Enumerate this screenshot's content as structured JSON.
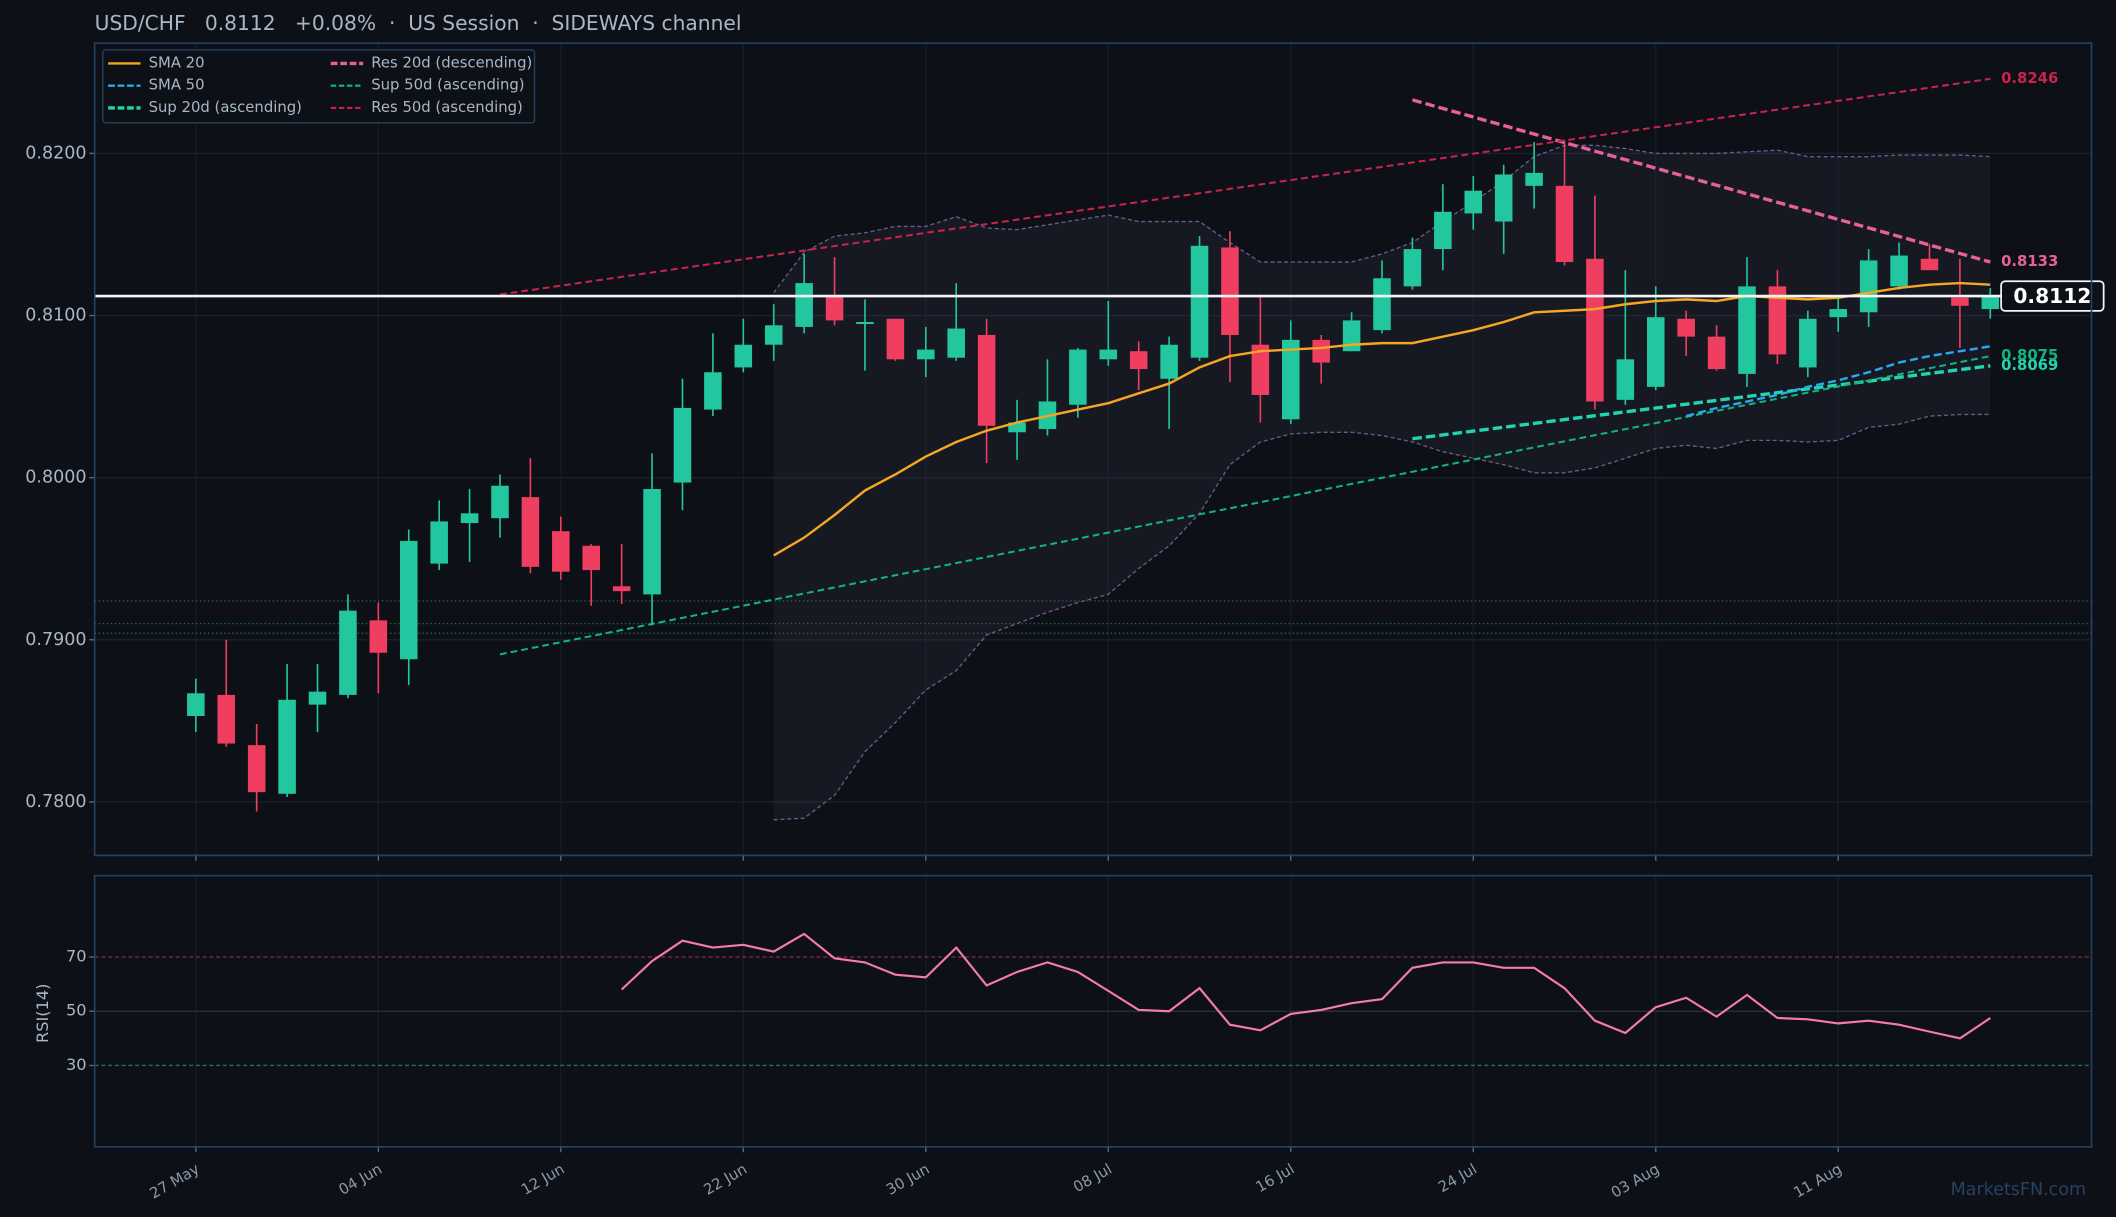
{
  "chart_data": [
    {
      "type": "candlestick",
      "title": "USD/CHF   0.8112   +0.08%  ·  US Session  ·  SIDEWAYS channel",
      "watermark": "MarketsFN.com",
      "categories": [
        "27 May",
        null,
        null,
        null,
        null,
        null,
        "04 Jun",
        null,
        null,
        null,
        null,
        null,
        "12 Jun",
        null,
        null,
        null,
        null,
        null,
        "22 Jun",
        null,
        null,
        null,
        null,
        null,
        "30 Jun",
        null,
        null,
        null,
        null,
        null,
        "08 Jul",
        null,
        null,
        null,
        null,
        null,
        "16 Jul",
        null,
        null,
        null,
        null,
        null,
        "24 Jul",
        null,
        null,
        null,
        null,
        null,
        "03 Aug",
        null,
        null,
        null,
        null,
        null,
        "11 Aug",
        null,
        null,
        null,
        null,
        null
      ],
      "open": [
        0.7853,
        0.7866,
        0.7835,
        0.7805,
        0.786,
        0.7866,
        0.7912,
        0.7888,
        0.7947,
        0.7972,
        0.7975,
        0.7988,
        0.7967,
        0.7958,
        0.7933,
        0.7928,
        0.7997,
        0.8042,
        0.8068,
        0.8082,
        0.8093,
        0.8112,
        0.8095,
        0.8098,
        0.8073,
        0.8074,
        0.8088,
        0.8028,
        0.803,
        0.8045,
        0.8073,
        0.8078,
        0.8061,
        0.8074,
        0.8142,
        0.8082,
        0.8036,
        0.8085,
        0.8078,
        0.8091,
        0.8118,
        0.8141,
        0.8163,
        0.8158,
        0.818,
        0.818,
        0.8135,
        0.8048,
        0.8056,
        0.8098,
        0.8087,
        0.8064,
        0.8118,
        0.8068,
        0.8099,
        0.8102,
        0.8118,
        0.8135,
        0.8111,
        0.8104
      ],
      "high": [
        0.7876,
        0.79,
        0.7848,
        0.7885,
        0.7885,
        0.7928,
        0.7923,
        0.7968,
        0.7986,
        0.7993,
        0.8002,
        0.8012,
        0.7976,
        0.7959,
        0.7959,
        0.8015,
        0.8061,
        0.8089,
        0.8098,
        0.8107,
        0.8138,
        0.8136,
        0.811,
        0.8098,
        0.8093,
        0.812,
        0.8098,
        0.8048,
        0.8073,
        0.808,
        0.8109,
        0.8084,
        0.8087,
        0.8149,
        0.8152,
        0.8113,
        0.8097,
        0.8088,
        0.8102,
        0.8134,
        0.8148,
        0.8181,
        0.8186,
        0.8193,
        0.8207,
        0.8208,
        0.8174,
        0.8128,
        0.8118,
        0.8103,
        0.8094,
        0.8136,
        0.8128,
        0.8103,
        0.8112,
        0.8141,
        0.8145,
        0.8144,
        0.8135,
        0.8117
      ],
      "low": [
        0.7843,
        0.7834,
        0.7794,
        0.7803,
        0.7843,
        0.7864,
        0.7867,
        0.7872,
        0.7943,
        0.7948,
        0.7963,
        0.7941,
        0.7937,
        0.7921,
        0.7922,
        0.7909,
        0.798,
        0.8038,
        0.8065,
        0.8072,
        0.8089,
        0.8094,
        0.8066,
        0.8072,
        0.8062,
        0.8072,
        0.8009,
        0.8011,
        0.8026,
        0.8037,
        0.8069,
        0.8054,
        0.803,
        0.8072,
        0.8059,
        0.8034,
        0.8033,
        0.8058,
        0.8078,
        0.8089,
        0.8116,
        0.8128,
        0.8153,
        0.8138,
        0.8166,
        0.8131,
        0.8042,
        0.8045,
        0.8054,
        0.8075,
        0.8066,
        0.8056,
        0.807,
        0.8062,
        0.809,
        0.8093,
        0.8116,
        0.8128,
        0.808,
        0.8098
      ],
      "close": [
        0.7867,
        0.7836,
        0.7806,
        0.7863,
        0.7868,
        0.7918,
        0.7892,
        0.7961,
        0.7973,
        0.7978,
        0.7995,
        0.7945,
        0.7942,
        0.7943,
        0.793,
        0.7993,
        0.8043,
        0.8065,
        0.8082,
        0.8094,
        0.812,
        0.8097,
        0.8096,
        0.8073,
        0.8079,
        0.8092,
        0.8032,
        0.8034,
        0.8047,
        0.8079,
        0.8079,
        0.8067,
        0.8082,
        0.8143,
        0.8088,
        0.8051,
        0.8085,
        0.8071,
        0.8097,
        0.8123,
        0.8141,
        0.8164,
        0.8177,
        0.8187,
        0.8188,
        0.8133,
        0.8047,
        0.8073,
        0.8099,
        0.8087,
        0.8067,
        0.8118,
        0.8076,
        0.8098,
        0.8104,
        0.8134,
        0.8137,
        0.8128,
        0.8106,
        0.8112
      ],
      "up_color": "#22c7a0",
      "down_color": "#ef3e5f",
      "ylim": [
        0.7767,
        0.8268
      ],
      "yticks": [
        {
          "value": 0.78,
          "label": "0.7800"
        },
        {
          "value": 0.79,
          "label": "0.7900"
        },
        {
          "value": 0.8,
          "label": "0.8000"
        },
        {
          "value": 0.81,
          "label": "0.8100"
        },
        {
          "value": 0.82,
          "label": "0.8200"
        }
      ],
      "grid": true,
      "legend": "upper left",
      "last_price": 0.8112,
      "series": [
        {
          "name": "SMA 20",
          "color": "#f5a623",
          "style": "solid",
          "width": 1.8,
          "values": [
            null,
            null,
            null,
            null,
            null,
            null,
            null,
            null,
            null,
            null,
            null,
            null,
            null,
            null,
            null,
            null,
            null,
            null,
            null,
            0.7952,
            0.7963,
            0.7977,
            0.7992,
            0.8002,
            0.8013,
            0.8022,
            0.8029,
            0.8034,
            0.8038,
            0.8042,
            0.8046,
            0.8052,
            0.8058,
            0.8068,
            0.8075,
            0.8078,
            0.8079,
            0.808,
            0.8082,
            0.8083,
            0.8083,
            0.8087,
            0.8091,
            0.8096,
            0.8102,
            0.8103,
            0.8104,
            0.8107,
            0.8109,
            0.811,
            0.8109,
            0.8112,
            0.8111,
            0.811,
            0.8111,
            0.8114,
            0.8117,
            0.8119,
            0.812,
            0.8119
          ]
        },
        {
          "name": "SMA 50",
          "color": "#2aa8f0",
          "style": "dashed",
          "width": 1.8,
          "values": [
            null,
            null,
            null,
            null,
            null,
            null,
            null,
            null,
            null,
            null,
            null,
            null,
            null,
            null,
            null,
            null,
            null,
            null,
            null,
            null,
            null,
            null,
            null,
            null,
            null,
            null,
            null,
            null,
            null,
            null,
            null,
            null,
            null,
            null,
            null,
            null,
            null,
            null,
            null,
            null,
            null,
            null,
            null,
            null,
            null,
            null,
            null,
            null,
            null,
            0.8038,
            0.8043,
            0.8047,
            0.8051,
            0.8056,
            0.806,
            0.8065,
            0.8071,
            0.8075,
            0.8078,
            0.8081
          ]
        }
      ],
      "trendlines": [
        {
          "name": "Sup 20d (ascending)",
          "color": "#1fd6b0",
          "width": 2.5,
          "x": [
            40,
            59
          ],
          "values": [
            0.8024,
            0.8069
          ]
        },
        {
          "name": "Res 20d (descending)",
          "color": "#e8609a",
          "width": 2.5,
          "x": [
            40,
            59
          ],
          "values": [
            0.8233,
            0.8133
          ]
        },
        {
          "name": "Sup 50d (ascending)",
          "color": "#14b37d",
          "width": 1.5,
          "x": [
            10,
            59
          ],
          "values": [
            0.7891,
            0.8075
          ]
        },
        {
          "name": "Res 50d (ascending)",
          "color": "#c8234f",
          "width": 1.5,
          "x": [
            10,
            59
          ],
          "values": [
            0.8113,
            0.8246
          ]
        }
      ],
      "bands": {
        "color": "#6a5a8a",
        "upper": [
          null,
          null,
          null,
          null,
          null,
          null,
          null,
          null,
          null,
          null,
          null,
          null,
          null,
          null,
          null,
          null,
          null,
          null,
          null,
          0.8114,
          0.8139,
          0.8149,
          0.8151,
          0.8155,
          0.8155,
          0.8161,
          0.8154,
          0.8153,
          0.8156,
          0.8159,
          0.8162,
          0.8158,
          0.8158,
          0.8158,
          0.8145,
          0.8133,
          0.8133,
          0.8133,
          0.8133,
          0.8138,
          0.8145,
          0.8158,
          0.817,
          0.8183,
          0.8198,
          0.8205,
          0.8205,
          0.8203,
          0.82,
          0.82,
          0.82,
          0.8201,
          0.8202,
          0.8198,
          0.8198,
          0.8198,
          0.8199,
          0.8199,
          0.8199,
          0.8198
        ],
        "lower": [
          null,
          null,
          null,
          null,
          null,
          null,
          null,
          null,
          null,
          null,
          null,
          null,
          null,
          null,
          null,
          null,
          null,
          null,
          null,
          0.7789,
          0.779,
          0.7804,
          0.7831,
          0.7849,
          0.7869,
          0.7881,
          0.7903,
          0.791,
          0.7917,
          0.7923,
          0.7928,
          0.7944,
          0.7958,
          0.7978,
          0.8008,
          0.8022,
          0.8027,
          0.8028,
          0.8028,
          0.8026,
          0.8022,
          0.8016,
          0.8012,
          0.8008,
          0.8003,
          0.8003,
          0.8006,
          0.8012,
          0.8018,
          0.802,
          0.8018,
          0.8023,
          0.8023,
          0.8022,
          0.8023,
          0.8031,
          0.8033,
          0.8038,
          0.8039,
          0.8039
        ]
      },
      "levels": [
        0.7924,
        0.791,
        0.7904
      ],
      "level_color": "#1f6a45"
    },
    {
      "type": "line",
      "ylabel": "RSI(14)",
      "ylim": [
        0,
        100
      ],
      "yticks": [
        30,
        50,
        70
      ],
      "tick_line_colors": [
        "#1f6f6a",
        "#2a323c",
        "#8a2a40"
      ],
      "series": [
        {
          "color": "#f57ab0",
          "values": [
            null,
            null,
            null,
            null,
            null,
            null,
            null,
            null,
            null,
            null,
            null,
            null,
            null,
            null,
            58,
            68.5,
            76,
            73.5,
            74.5,
            72,
            78.5,
            69.5,
            68,
            63.5,
            62.5,
            73.5,
            59.5,
            64.5,
            68,
            64.5,
            57.5,
            50.5,
            50,
            58.5,
            45,
            43,
            49,
            50.5,
            53,
            54.5,
            66,
            68,
            68,
            66,
            66,
            58.5,
            46.5,
            42,
            51.5,
            55,
            48,
            56,
            47.5,
            47,
            45.5,
            46.5,
            45,
            42.5,
            40,
            47.5
          ]
        }
      ]
    }
  ]
}
